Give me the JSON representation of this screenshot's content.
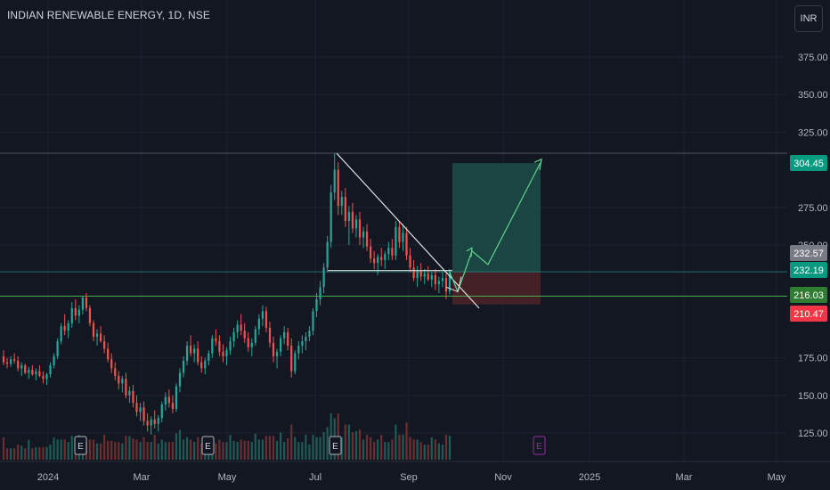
{
  "header": {
    "title": "INDIAN RENEWABLE ENERGY, 1D, NSE",
    "currency_button": "INR"
  },
  "colors": {
    "background": "#131722",
    "grid": "#1e222d",
    "up": "#26a69a",
    "down": "#ef5350",
    "target_zone": "#1d4d48",
    "stop_zone": "#4a2228",
    "projection_arrow": "#5fd38d",
    "level_line": "#4caf50",
    "pattern_line": "#e0e0e0"
  },
  "chart_data": {
    "type": "candlestick",
    "y_ticks": [
      "375.00",
      "350.00",
      "325.00",
      "275.00",
      "250.00",
      "175.00",
      "150.00",
      "125.00"
    ],
    "y_range": [
      107,
      385
    ],
    "x_ticks": [
      "2024",
      "Mar",
      "May",
      "Jul",
      "Sep",
      "Nov",
      "2025",
      "Mar",
      "May"
    ],
    "price_tags": [
      {
        "label": "304.45",
        "value": 304.45,
        "color": "#089981"
      },
      {
        "label": "232.57",
        "value": 232.57,
        "color": "#787b86"
      },
      {
        "label": "232.19",
        "value": 232.19,
        "color": "#089981"
      },
      {
        "label": "216.03",
        "value": 216.03,
        "color": "#2e7d32"
      },
      {
        "label": "210.47",
        "value": 210.47,
        "color": "#f23645"
      }
    ],
    "horizontal_levels": [
      {
        "value": 311,
        "name": "swing high"
      },
      {
        "value": 232.19,
        "name": "entry"
      },
      {
        "value": 216.03,
        "name": "support"
      }
    ],
    "position": {
      "entry": 232.19,
      "target": 304.45,
      "stop": 210.47
    },
    "earnings_markers": [
      {
        "label": "E",
        "at": "Feb",
        "state": "past"
      },
      {
        "label": "E",
        "at": "May",
        "state": "past"
      },
      {
        "label": "E",
        "at": "Jul",
        "state": "past"
      },
      {
        "label": "E",
        "at": "Nov",
        "state": "upcoming"
      }
    ],
    "candles": [
      [
        176,
        180,
        170,
        172
      ],
      [
        172,
        175,
        168,
        171
      ],
      [
        171,
        176,
        169,
        174
      ],
      [
        174,
        178,
        171,
        173
      ],
      [
        173,
        176,
        166,
        168
      ],
      [
        168,
        172,
        163,
        170
      ],
      [
        170,
        171,
        164,
        165
      ],
      [
        165,
        169,
        161,
        167
      ],
      [
        167,
        170,
        163,
        164
      ],
      [
        164,
        168,
        160,
        166
      ],
      [
        166,
        170,
        162,
        163
      ],
      [
        163,
        166,
        158,
        161
      ],
      [
        161,
        165,
        157,
        164
      ],
      [
        164,
        172,
        162,
        170
      ],
      [
        170,
        178,
        168,
        176
      ],
      [
        176,
        188,
        174,
        186
      ],
      [
        186,
        198,
        184,
        196
      ],
      [
        196,
        204,
        190,
        193
      ],
      [
        193,
        200,
        188,
        198
      ],
      [
        198,
        212,
        195,
        208
      ],
      [
        208,
        214,
        200,
        203
      ],
      [
        203,
        210,
        198,
        207
      ],
      [
        207,
        216,
        204,
        215
      ],
      [
        215,
        218,
        206,
        208
      ],
      [
        208,
        210,
        196,
        198
      ],
      [
        198,
        200,
        186,
        189
      ],
      [
        189,
        194,
        183,
        191
      ],
      [
        191,
        196,
        185,
        186
      ],
      [
        186,
        190,
        178,
        181
      ],
      [
        181,
        185,
        172,
        174
      ],
      [
        174,
        178,
        165,
        168
      ],
      [
        168,
        172,
        160,
        163
      ],
      [
        163,
        166,
        154,
        158
      ],
      [
        158,
        163,
        152,
        161
      ],
      [
        161,
        165,
        148,
        150
      ],
      [
        150,
        156,
        145,
        153
      ],
      [
        153,
        157,
        142,
        145
      ],
      [
        145,
        150,
        136,
        139
      ],
      [
        139,
        145,
        133,
        142
      ],
      [
        142,
        146,
        130,
        133
      ],
      [
        133,
        138,
        126,
        130
      ],
      [
        130,
        136,
        124,
        134
      ],
      [
        134,
        140,
        128,
        131
      ],
      [
        131,
        137,
        126,
        135
      ],
      [
        135,
        146,
        132,
        144
      ],
      [
        144,
        152,
        140,
        149
      ],
      [
        149,
        154,
        142,
        145
      ],
      [
        145,
        150,
        138,
        141
      ],
      [
        141,
        158,
        139,
        156
      ],
      [
        156,
        168,
        152,
        165
      ],
      [
        165,
        176,
        162,
        173
      ],
      [
        173,
        186,
        170,
        183
      ],
      [
        183,
        190,
        176,
        178
      ],
      [
        178,
        184,
        172,
        181
      ],
      [
        181,
        186,
        170,
        172
      ],
      [
        172,
        176,
        165,
        168
      ],
      [
        168,
        175,
        164,
        173
      ],
      [
        173,
        180,
        170,
        178
      ],
      [
        178,
        190,
        175,
        188
      ],
      [
        188,
        194,
        183,
        186
      ],
      [
        186,
        190,
        176,
        179
      ],
      [
        179,
        184,
        172,
        176
      ],
      [
        176,
        182,
        170,
        180
      ],
      [
        180,
        189,
        177,
        186
      ],
      [
        186,
        195,
        182,
        192
      ],
      [
        192,
        200,
        188,
        197
      ],
      [
        197,
        204,
        190,
        193
      ],
      [
        193,
        198,
        185,
        188
      ],
      [
        188,
        192,
        179,
        182
      ],
      [
        182,
        188,
        176,
        185
      ],
      [
        185,
        196,
        183,
        194
      ],
      [
        194,
        204,
        190,
        201
      ],
      [
        201,
        210,
        196,
        206
      ],
      [
        206,
        209,
        192,
        195
      ],
      [
        195,
        199,
        182,
        185
      ],
      [
        185,
        189,
        172,
        176
      ],
      [
        176,
        181,
        168,
        179
      ],
      [
        179,
        190,
        176,
        188
      ],
      [
        188,
        196,
        184,
        192
      ],
      [
        192,
        195,
        180,
        183
      ],
      [
        183,
        188,
        162,
        166
      ],
      [
        166,
        180,
        164,
        178
      ],
      [
        178,
        186,
        174,
        183
      ],
      [
        183,
        190,
        178,
        186
      ],
      [
        186,
        192,
        180,
        189
      ],
      [
        189,
        196,
        186,
        193
      ],
      [
        193,
        208,
        190,
        206
      ],
      [
        206,
        218,
        202,
        214
      ],
      [
        214,
        226,
        210,
        222
      ],
      [
        222,
        238,
        218,
        235
      ],
      [
        235,
        256,
        232,
        252
      ],
      [
        252,
        290,
        248,
        285
      ],
      [
        285,
        311,
        280,
        300
      ],
      [
        300,
        305,
        270,
        276
      ],
      [
        276,
        286,
        270,
        282
      ],
      [
        282,
        288,
        262,
        266
      ],
      [
        266,
        276,
        250,
        272
      ],
      [
        272,
        278,
        258,
        261
      ],
      [
        261,
        270,
        255,
        267
      ],
      [
        267,
        272,
        250,
        255
      ],
      [
        255,
        262,
        248,
        259
      ],
      [
        259,
        264,
        246,
        249
      ],
      [
        249,
        254,
        238,
        241
      ],
      [
        241,
        246,
        234,
        238
      ],
      [
        238,
        244,
        230,
        242
      ],
      [
        242,
        248,
        236,
        240
      ],
      [
        240,
        246,
        234,
        244
      ],
      [
        244,
        252,
        240,
        248
      ],
      [
        248,
        254,
        240,
        243
      ],
      [
        243,
        266,
        240,
        262
      ],
      [
        262,
        266,
        248,
        252
      ],
      [
        252,
        264,
        246,
        258
      ],
      [
        258,
        262,
        240,
        243
      ],
      [
        243,
        248,
        232,
        235
      ],
      [
        235,
        240,
        226,
        228
      ],
      [
        228,
        236,
        222,
        233
      ],
      [
        233,
        238,
        226,
        229
      ],
      [
        229,
        234,
        224,
        231
      ],
      [
        231,
        236,
        226,
        227
      ],
      [
        227,
        232,
        222,
        230
      ],
      [
        230,
        234,
        220,
        224
      ],
      [
        224,
        229,
        218,
        226
      ],
      [
        226,
        232,
        222,
        228
      ],
      [
        228,
        232,
        214,
        219
      ],
      [
        219,
        234,
        217,
        232
      ]
    ]
  }
}
